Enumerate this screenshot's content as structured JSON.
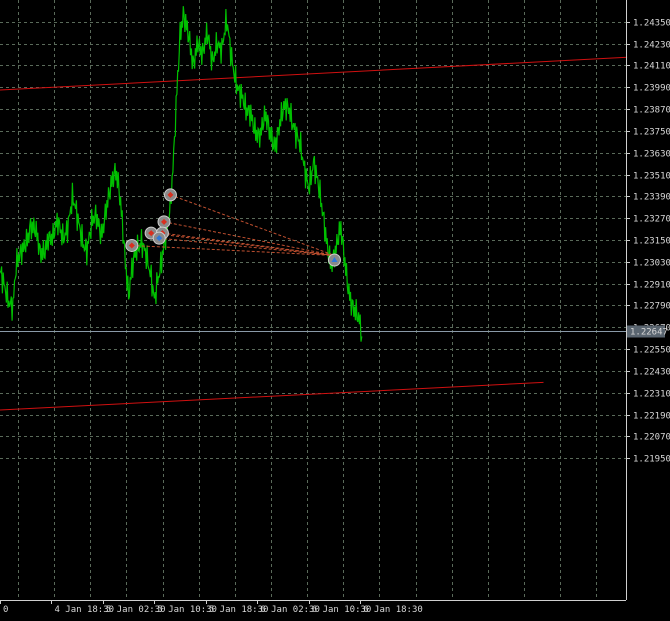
{
  "chart_data": {
    "type": "line",
    "symbol_type": "candlestick-line",
    "colors": {
      "background": "#000000",
      "grid": "#5a6a5a",
      "price_line": "#00c000",
      "trend_line": "#d01010",
      "trade_line": "#c05030",
      "axis_text": "#d8d8d8",
      "current_price_line": "#8a9aa8",
      "current_price_bg": "#5a6570"
    },
    "y_axis": {
      "ylim": [
        1.2117,
        1.2447
      ],
      "ticks": [
        "1.24350",
        "1.24230",
        "1.24110",
        "1.23990",
        "1.23870",
        "1.23750",
        "1.23630",
        "1.23510",
        "1.23390",
        "1.23270",
        "1.23150",
        "1.23030",
        "1.22910",
        "1.22790",
        "1.22670",
        "1.22550",
        "1.22430",
        "1.22310",
        "1.22190",
        "1.22070",
        "1.21950"
      ],
      "tick_values": [
        1.2435,
        1.2423,
        1.2411,
        1.2399,
        1.2387,
        1.2375,
        1.2363,
        1.2351,
        1.2339,
        1.2327,
        1.2315,
        1.2303,
        1.2291,
        1.2279,
        1.2267,
        1.2255,
        1.2243,
        1.2231,
        1.2219,
        1.2207,
        1.2195
      ]
    },
    "x_axis": {
      "ticks": [
        "0",
        "4 Jan 18:30",
        "5 Jan 02:30",
        "5 Jan 10:30",
        "5 Jan 18:30",
        "6 Jan 02:30",
        "6 Jan 10:30",
        "6 Jan 18:30"
      ],
      "tick_index": [
        0,
        32,
        64,
        96,
        128,
        160,
        192,
        224
      ],
      "xlim": [
        0,
        390
      ]
    },
    "current_price": {
      "value": 1.22647,
      "label": "1.22647"
    },
    "price_series": [
      [
        0,
        1.2294
      ],
      [
        4,
        1.2288
      ],
      [
        8,
        1.228
      ],
      [
        10,
        1.2298
      ],
      [
        13,
        1.2305
      ],
      [
        16,
        1.2316
      ],
      [
        19,
        1.2325
      ],
      [
        22,
        1.2318
      ],
      [
        25,
        1.2305
      ],
      [
        28,
        1.2312
      ],
      [
        30,
        1.232
      ],
      [
        33,
        1.2315
      ],
      [
        36,
        1.2322
      ],
      [
        39,
        1.2318
      ],
      [
        42,
        1.2325
      ],
      [
        45,
        1.2336
      ],
      [
        48,
        1.2325
      ],
      [
        51,
        1.2318
      ],
      [
        54,
        1.2312
      ],
      [
        57,
        1.2322
      ],
      [
        60,
        1.2325
      ],
      [
        63,
        1.232
      ],
      [
        66,
        1.2335
      ],
      [
        69,
        1.2342
      ],
      [
        72,
        1.235
      ],
      [
        74,
        1.2345
      ],
      [
        76,
        1.233
      ],
      [
        78,
        1.2305
      ],
      [
        80,
        1.2282
      ],
      [
        82,
        1.2295
      ],
      [
        85,
        1.231
      ],
      [
        88,
        1.2318
      ],
      [
        90,
        1.2312
      ],
      [
        93,
        1.2295
      ],
      [
        96,
        1.228
      ],
      [
        98,
        1.2295
      ],
      [
        101,
        1.231
      ],
      [
        104,
        1.232
      ],
      [
        106,
        1.233
      ],
      [
        108,
        1.236
      ],
      [
        110,
        1.24
      ],
      [
        112,
        1.2432
      ],
      [
        114,
        1.244
      ],
      [
        117,
        1.2425
      ],
      [
        120,
        1.241
      ],
      [
        123,
        1.2428
      ],
      [
        126,
        1.2418
      ],
      [
        129,
        1.2425
      ],
      [
        132,
        1.2412
      ],
      [
        135,
        1.2428
      ],
      [
        138,
        1.242
      ],
      [
        141,
        1.2432
      ],
      [
        144,
        1.2415
      ],
      [
        147,
        1.2405
      ],
      [
        150,
        1.2395
      ],
      [
        153,
        1.2382
      ],
      [
        156,
        1.2385
      ],
      [
        159,
        1.2378
      ],
      [
        162,
        1.2372
      ],
      [
        165,
        1.238
      ],
      [
        168,
        1.2375
      ],
      [
        171,
        1.237
      ],
      [
        174,
        1.2378
      ],
      [
        177,
        1.2385
      ],
      [
        180,
        1.2388
      ],
      [
        183,
        1.238
      ],
      [
        186,
        1.2368
      ],
      [
        189,
        1.2352
      ],
      [
        192,
        1.2345
      ],
      [
        195,
        1.2362
      ],
      [
        197,
        1.235
      ],
      [
        200,
        1.233
      ],
      [
        203,
        1.2315
      ],
      [
        206,
        1.2305
      ],
      [
        209,
        1.231
      ],
      [
        212,
        1.2318
      ],
      [
        214,
        1.2305
      ],
      [
        217,
        1.229
      ],
      [
        220,
        1.2278
      ],
      [
        223,
        1.2268
      ],
      [
        225,
        1.2262
      ]
    ],
    "trend_lines": [
      {
        "from": [
          0,
          1.23975
        ],
        "to": [
          390,
          1.24155
        ]
      },
      {
        "from": [
          0,
          1.22215
        ],
        "to": [
          338,
          1.22367
        ]
      }
    ],
    "trades": [
      {
        "entry": [
          106,
          1.23398
        ],
        "exit": [
          208,
          1.23065
        ],
        "type": "sell"
      },
      {
        "entry": [
          102,
          1.2325
        ],
        "exit": [
          208,
          1.23065
        ],
        "type": "sell"
      },
      {
        "entry": [
          94,
          1.23188
        ],
        "exit": [
          208,
          1.23065
        ],
        "type": "sell"
      },
      {
        "entry": [
          101,
          1.23188
        ],
        "exit": [
          208,
          1.23065
        ],
        "type": "sell"
      },
      {
        "entry": [
          99,
          1.2316
        ],
        "exit": [
          208,
          1.23065
        ],
        "type": "buy"
      },
      {
        "entry": [
          82,
          1.2312
        ],
        "exit": [
          208,
          1.23065
        ],
        "type": "sell"
      }
    ],
    "exit_marker": {
      "at": [
        208,
        1.2304
      ],
      "icon": "close-position-icon"
    }
  }
}
